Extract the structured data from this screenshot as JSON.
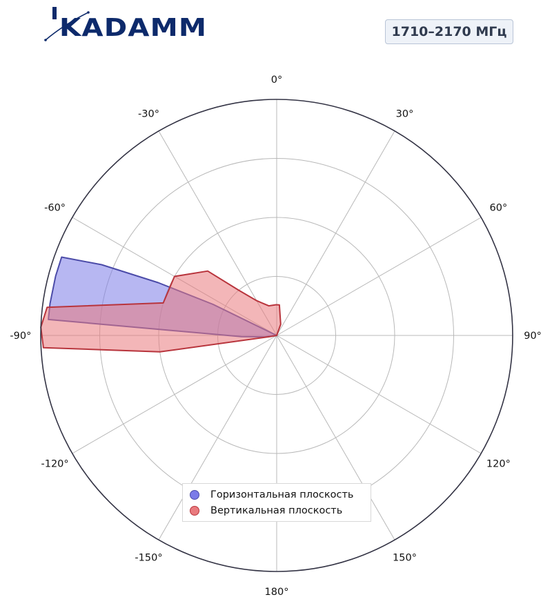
{
  "brand": {
    "logo_text": "KADAMM"
  },
  "badge": {
    "label": "1710–2170 МГц"
  },
  "chart_data": {
    "type": "polar-area",
    "angle_unit": "degrees",
    "angle_ticks": [
      0,
      30,
      60,
      90,
      120,
      150,
      180,
      -150,
      -120,
      -90,
      -60,
      -30
    ],
    "angle_tick_labels": [
      "0°",
      "30°",
      "60°",
      "90°",
      "120°",
      "150°",
      "180°",
      "-150°",
      "-120°",
      "-90°",
      "-60°",
      "-30°"
    ],
    "radial_rings": [
      0.25,
      0.5,
      0.75,
      1.0
    ],
    "radial_range": [
      0,
      1
    ],
    "zero_location": "top",
    "direction": "clockwise",
    "legend_position": "bottom-center",
    "series": [
      {
        "name": "Горизонтальная плоскость",
        "color": "#7b7be8",
        "stroke": "#4b4ba8",
        "points": [
          [
            0,
            0
          ],
          [
            -64,
            0.3
          ],
          [
            -66,
            0.55
          ],
          [
            -68,
            0.8
          ],
          [
            -70,
            0.97
          ],
          [
            -75,
            0.97
          ],
          [
            -82,
            0.97
          ],
          [
            -86,
            0.97
          ],
          [
            -92,
            0.15
          ],
          [
            -97,
            0.05
          ],
          [
            -100,
            0
          ]
        ]
      },
      {
        "name": "Вертикальная плоскость",
        "color": "#e97a7e",
        "stroke": "#b8343c",
        "points": [
          [
            0,
            0
          ],
          [
            20,
            0.05
          ],
          [
            5,
            0.13
          ],
          [
            -1,
            0.13
          ],
          [
            -15,
            0.13
          ],
          [
            -30,
            0.17
          ],
          [
            -40,
            0.25
          ],
          [
            -47,
            0.4
          ],
          [
            -60,
            0.5
          ],
          [
            -74,
            0.5
          ],
          [
            -83,
            0.98
          ],
          [
            -88,
            1.0
          ],
          [
            -93,
            0.99
          ],
          [
            -98,
            0.5
          ],
          [
            -100,
            0.03
          ],
          [
            -105,
            0
          ]
        ]
      }
    ]
  }
}
